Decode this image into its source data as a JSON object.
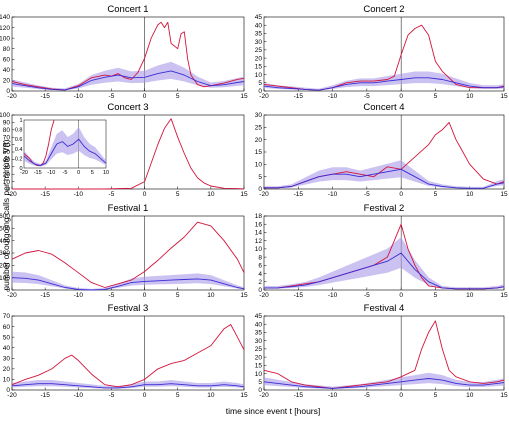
{
  "figure": {
    "ylabel": "number of outgoing calls per minute V(t)",
    "xlabel": "time since event t [hours]",
    "colors": {
      "event": "#d4143c",
      "baseline": "#3a2bd6",
      "band": "#a89ae8"
    }
  },
  "chart_data": [
    {
      "type": "line",
      "title": "Concert 1",
      "xlim": [
        -20,
        15
      ],
      "ylim": [
        0,
        140
      ],
      "xticks": [
        -20,
        -15,
        -10,
        -5,
        0,
        5,
        15
      ],
      "xticklabels": [
        "-20",
        "-15",
        "-10",
        "-5",
        "0",
        "5",
        "15"
      ],
      "yticks": [
        0,
        20,
        40,
        60,
        80,
        100,
        120,
        140
      ],
      "series": [
        {
          "role": "event",
          "x": [
            -20,
            -18,
            -16,
            -14,
            -12,
            -10,
            -8,
            -6,
            -5,
            -4,
            -3,
            -2,
            -1,
            0,
            1,
            2,
            2.5,
            3,
            3.5,
            4,
            5,
            5.5,
            6,
            6.5,
            7,
            8,
            9,
            10,
            12,
            14,
            15
          ],
          "y": [
            18,
            12,
            8,
            4,
            2,
            10,
            25,
            30,
            28,
            33,
            25,
            22,
            35,
            62,
            100,
            125,
            130,
            120,
            130,
            90,
            80,
            108,
            112,
            60,
            30,
            12,
            8,
            10,
            15,
            22,
            24
          ]
        },
        {
          "role": "baseline",
          "x": [
            -20,
            -18,
            -16,
            -14,
            -12,
            -10,
            -8,
            -6,
            -4,
            -2,
            0,
            2,
            4,
            6,
            8,
            10,
            12,
            14,
            15
          ],
          "y": [
            14,
            10,
            6,
            3,
            2,
            8,
            20,
            26,
            30,
            25,
            26,
            33,
            38,
            30,
            18,
            10,
            12,
            16,
            18
          ]
        }
      ]
    },
    {
      "type": "line",
      "title": "Concert 2",
      "xlim": [
        -20,
        15
      ],
      "ylim": [
        0,
        45
      ],
      "xticks": [
        -20,
        -15,
        -10,
        -5,
        0,
        5,
        10,
        15
      ],
      "xticklabels": [
        "-20",
        "-15",
        "-10",
        "-5",
        "0",
        "5",
        "10",
        "15"
      ],
      "yticks": [
        0,
        5,
        10,
        15,
        20,
        25,
        30,
        35,
        40,
        45
      ],
      "series": [
        {
          "role": "event",
          "x": [
            -20,
            -18,
            -16,
            -14,
            -12,
            -10,
            -8,
            -6,
            -4,
            -2,
            -1,
            0,
            1,
            2,
            3,
            4,
            5,
            6,
            7,
            8,
            10,
            12,
            14,
            15
          ],
          "y": [
            4,
            3,
            2,
            1,
            0.5,
            2,
            5,
            6,
            6,
            7,
            9,
            22,
            34,
            38,
            40,
            34,
            18,
            12,
            8,
            4,
            2,
            2,
            2,
            3
          ]
        },
        {
          "role": "baseline",
          "x": [
            -20,
            -18,
            -16,
            -14,
            -12,
            -10,
            -8,
            -6,
            -4,
            -2,
            0,
            2,
            4,
            6,
            8,
            10,
            12,
            14,
            15
          ],
          "y": [
            3,
            2,
            1.5,
            1,
            0.5,
            2,
            4,
            5,
            5,
            6,
            7,
            8,
            8,
            7,
            5,
            3,
            2,
            2,
            2.5
          ]
        }
      ]
    },
    {
      "type": "line",
      "title": "Concert 3",
      "xlim": [
        -20,
        15
      ],
      "ylim": [
        0,
        100
      ],
      "xticks": [
        -20,
        -15,
        -10,
        -5,
        0,
        5,
        10,
        15
      ],
      "xticklabels": [
        "-20",
        "-15",
        "-10",
        "-5",
        "0",
        "5",
        "10",
        "15"
      ],
      "yticks": [
        0,
        10,
        20,
        30,
        40,
        50,
        60,
        70,
        80,
        90,
        100
      ],
      "series": [
        {
          "role": "event",
          "x": [
            -20,
            -18,
            -16,
            -14,
            -12,
            -10,
            -8,
            -6,
            -4,
            -2,
            0,
            1,
            2,
            3,
            4,
            5,
            6,
            7,
            8,
            9,
            10,
            12,
            14,
            15
          ],
          "y": [
            0,
            0,
            0,
            0,
            0,
            0,
            0,
            0,
            0.5,
            1,
            10,
            35,
            60,
            82,
            95,
            70,
            48,
            28,
            15,
            8,
            4,
            1,
            0.5,
            0
          ]
        }
      ],
      "inset": {
        "xlim": [
          -20,
          10
        ],
        "ylim": [
          0,
          1
        ],
        "xticklabels": [
          "-20",
          "-15",
          "-10",
          "-5",
          "0",
          "5",
          "10"
        ],
        "yticklabels": [
          "0",
          "0.2",
          "0.4",
          "0.6",
          "0.8",
          "1"
        ],
        "series": [
          {
            "role": "event",
            "x": [
              -20,
              -19,
              -18,
              -17,
              -16,
              -15,
              -14,
              -13,
              -12,
              -11,
              -10,
              -9
            ],
            "y": [
              0.3,
              0.25,
              0.2,
              0.12,
              0.08,
              0.05,
              0.05,
              0.1,
              0.25,
              0.5,
              0.8,
              1
            ]
          },
          {
            "role": "baseline",
            "x": [
              -20,
              -18,
              -16,
              -14,
              -12,
              -10,
              -8,
              -6,
              -4,
              -2,
              0,
              2,
              4,
              6,
              8,
              10
            ],
            "y": [
              0.25,
              0.15,
              0.08,
              0.05,
              0.1,
              0.3,
              0.5,
              0.55,
              0.45,
              0.5,
              0.6,
              0.45,
              0.35,
              0.3,
              0.2,
              0.1
            ]
          }
        ]
      }
    },
    {
      "type": "line",
      "title": "Concert 4",
      "xlim": [
        -20,
        15
      ],
      "ylim": [
        0,
        30
      ],
      "xticks": [
        -20,
        -15,
        -10,
        -5,
        0,
        5,
        10,
        15
      ],
      "xticklabels": [
        "-20",
        "-15",
        "-10",
        "-5",
        "0",
        "5",
        "10",
        "15"
      ],
      "yticks": [
        0,
        5,
        10,
        15,
        20,
        25,
        30
      ],
      "series": [
        {
          "role": "event",
          "x": [
            -20,
            -18,
            -16,
            -14,
            -12,
            -10,
            -8,
            -6,
            -4,
            -2,
            0,
            2,
            4,
            5,
            6,
            7,
            8,
            9,
            10,
            12,
            14,
            15
          ],
          "y": [
            0.5,
            0.5,
            1,
            3,
            5,
            6,
            7,
            6,
            5,
            9,
            8,
            13,
            18,
            22,
            24,
            27,
            20,
            15,
            10,
            4,
            2,
            3
          ]
        },
        {
          "role": "baseline",
          "x": [
            -20,
            -18,
            -16,
            -14,
            -12,
            -10,
            -8,
            -6,
            -4,
            -2,
            0,
            2,
            4,
            6,
            8,
            10,
            12,
            14,
            15
          ],
          "y": [
            0.5,
            0.5,
            1,
            3,
            5,
            6,
            6,
            5,
            6,
            7,
            8,
            5,
            2,
            1,
            0.5,
            0.3,
            0.3,
            2,
            2.5
          ]
        }
      ]
    },
    {
      "type": "line",
      "title": "Festival 1",
      "xlim": [
        -20,
        15
      ],
      "ylim": [
        0,
        600
      ],
      "xticks": [
        -20,
        -15,
        -10,
        -5,
        0,
        5,
        10,
        15
      ],
      "xticklabels": [
        "-20",
        "-15",
        "-10",
        "-5",
        "0",
        "5",
        "10",
        "15"
      ],
      "yticks": [
        0,
        100,
        200,
        300,
        400,
        500,
        600
      ],
      "series": [
        {
          "role": "event",
          "x": [
            -20,
            -18,
            -16,
            -14,
            -12,
            -10,
            -8,
            -6,
            -4,
            -2,
            0,
            2,
            4,
            6,
            8,
            10,
            12,
            14,
            15
          ],
          "y": [
            250,
            300,
            320,
            290,
            220,
            140,
            60,
            20,
            50,
            80,
            150,
            240,
            340,
            430,
            550,
            520,
            400,
            250,
            140
          ]
        },
        {
          "role": "baseline",
          "x": [
            -20,
            -18,
            -16,
            -14,
            -12,
            -10,
            -8,
            -6,
            -4,
            -2,
            0,
            2,
            4,
            6,
            8,
            10,
            12,
            14,
            15
          ],
          "y": [
            100,
            95,
            80,
            50,
            20,
            5,
            0,
            5,
            30,
            60,
            70,
            75,
            80,
            85,
            90,
            80,
            50,
            20,
            10
          ]
        }
      ]
    },
    {
      "type": "line",
      "title": "Festival 2",
      "xlim": [
        -20,
        15
      ],
      "ylim": [
        0,
        18
      ],
      "xticks": [
        -20,
        -15,
        -10,
        -5,
        0,
        5,
        10,
        15
      ],
      "xticklabels": [
        "-20",
        "-15",
        "-10",
        "-5",
        "0",
        "5",
        "10",
        "15"
      ],
      "yticks": [
        0,
        2,
        4,
        6,
        8,
        10,
        12,
        14,
        16,
        18
      ],
      "series": [
        {
          "role": "event",
          "x": [
            -20,
            -18,
            -16,
            -14,
            -12,
            -10,
            -8,
            -6,
            -4,
            -2,
            -1,
            0,
            1,
            2,
            3,
            4,
            6,
            8,
            10,
            12,
            14,
            15
          ],
          "y": [
            0.5,
            0.5,
            1,
            1.5,
            2,
            3,
            4,
            5,
            6,
            8,
            12,
            16,
            10,
            6,
            3,
            1,
            0.5,
            0.3,
            0.3,
            0.3,
            0.5,
            0.8
          ]
        },
        {
          "role": "baseline",
          "x": [
            -20,
            -18,
            -16,
            -14,
            -12,
            -10,
            -8,
            -6,
            -4,
            -2,
            0,
            2,
            4,
            6,
            8,
            10,
            12,
            14,
            15
          ],
          "y": [
            0.5,
            0.5,
            0.8,
            1.2,
            2,
            3,
            4,
            5,
            6,
            7,
            9,
            5,
            2,
            0.5,
            0.3,
            0.3,
            0.3,
            0.5,
            0.8
          ]
        }
      ]
    },
    {
      "type": "line",
      "title": "Festival 3",
      "xlim": [
        -20,
        15
      ],
      "ylim": [
        0,
        70
      ],
      "xticks": [
        -20,
        -15,
        -10,
        -5,
        0,
        5,
        10,
        15
      ],
      "xticklabels": [
        "-20",
        "-15",
        "-10",
        "-5",
        "0",
        "5",
        "10",
        "15"
      ],
      "yticks": [
        0,
        10,
        20,
        30,
        40,
        50,
        60,
        70
      ],
      "series": [
        {
          "role": "event",
          "x": [
            -20,
            -18,
            -16,
            -14,
            -12,
            -11,
            -10,
            -8,
            -6,
            -4,
            -2,
            0,
            2,
            4,
            6,
            8,
            10,
            12,
            13,
            14,
            15
          ],
          "y": [
            5,
            10,
            14,
            20,
            30,
            33,
            28,
            15,
            5,
            3,
            5,
            10,
            20,
            25,
            28,
            35,
            42,
            58,
            62,
            50,
            38
          ]
        },
        {
          "role": "baseline",
          "x": [
            -20,
            -18,
            -16,
            -14,
            -12,
            -10,
            -8,
            -6,
            -4,
            -2,
            0,
            2,
            4,
            6,
            8,
            10,
            12,
            14,
            15
          ],
          "y": [
            4,
            5,
            6,
            6,
            5,
            4,
            3,
            2,
            2,
            3,
            5,
            5,
            6,
            5,
            4,
            4,
            5,
            4,
            3
          ]
        }
      ]
    },
    {
      "type": "line",
      "title": "Festival 4",
      "xlim": [
        -20,
        15
      ],
      "ylim": [
        0,
        45
      ],
      "xticks": [
        -20,
        -15,
        -10,
        -5,
        0,
        5,
        10,
        15
      ],
      "xticklabels": [
        "-20",
        "-15",
        "-10",
        "-5",
        "0",
        "5",
        "10",
        "15"
      ],
      "yticks": [
        0,
        5,
        10,
        15,
        20,
        25,
        30,
        35,
        40,
        45
      ],
      "series": [
        {
          "role": "event",
          "x": [
            -20,
            -18,
            -16,
            -14,
            -12,
            -10,
            -8,
            -6,
            -4,
            -2,
            0,
            2,
            3,
            4,
            5,
            6,
            7,
            8,
            10,
            12,
            14,
            15
          ],
          "y": [
            12,
            10,
            5,
            3,
            2,
            1,
            2,
            3,
            4,
            5,
            8,
            12,
            25,
            35,
            42,
            25,
            12,
            8,
            5,
            4,
            5,
            6
          ]
        },
        {
          "role": "baseline",
          "x": [
            -20,
            -18,
            -16,
            -14,
            -12,
            -10,
            -8,
            -6,
            -4,
            -2,
            0,
            2,
            4,
            6,
            8,
            10,
            12,
            14,
            15
          ],
          "y": [
            5,
            4,
            3,
            2,
            1.5,
            1,
            1.5,
            2,
            3,
            4,
            5,
            6,
            7,
            6,
            4,
            3,
            3,
            4,
            4.5
          ]
        }
      ]
    }
  ]
}
